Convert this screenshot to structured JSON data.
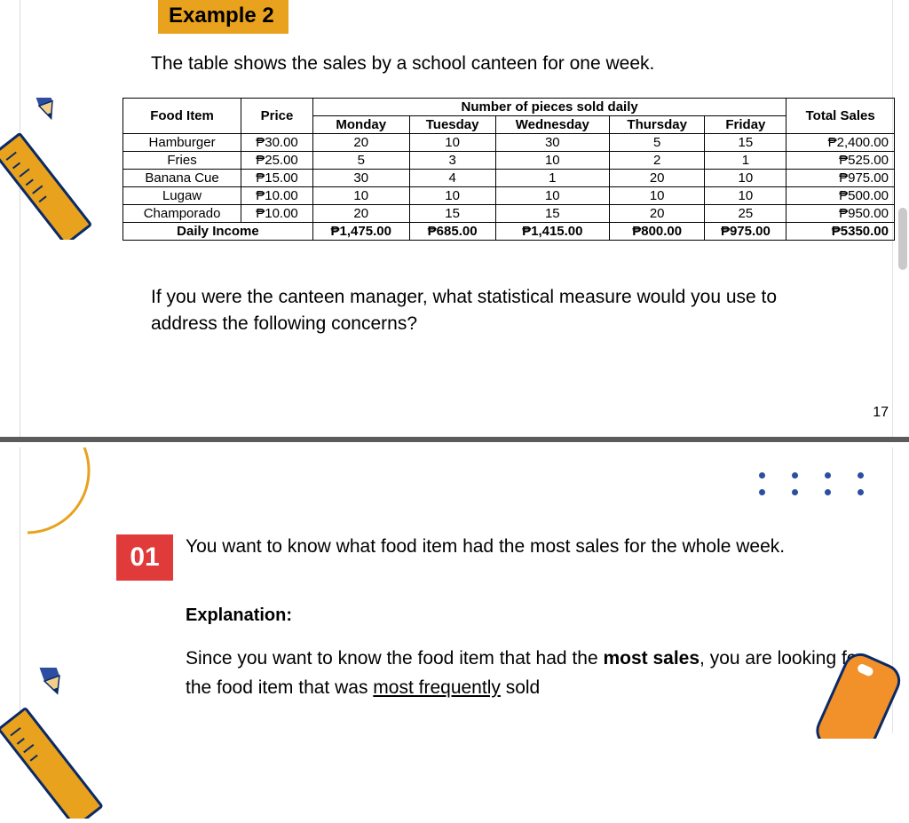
{
  "colors": {
    "badge_bg": "#e8a21d",
    "badge_text": "#000000",
    "divider": "#5b5b5b",
    "num_badge_bg": "#e03a3a",
    "num_badge_text": "#ffffff",
    "dot": "#2d4da0",
    "arc_stroke": "#e8a21d",
    "ruler_fill": "#e8a21d",
    "ruler_stroke": "#0a2a66",
    "pencil_blue": "#2d4da0",
    "pencil_tip": "#f4cf8a",
    "deco_orange": "#f2902a"
  },
  "slide1": {
    "example_label": "Example 2",
    "intro": "The table shows the sales by a school canteen for one week.",
    "question": "If you were the canteen manager, what statistical measure would you use to address the following concerns?",
    "page_number": "17"
  },
  "table": {
    "headers": {
      "food_item": "Food Item",
      "price": "Price",
      "days_group": "Number of pieces sold daily",
      "total_sales": "Total Sales",
      "days": [
        "Monday",
        "Tuesday",
        "Wednesday",
        "Thursday",
        "Friday"
      ]
    },
    "rows": [
      {
        "item": "Hamburger",
        "price": "₱30.00",
        "vals": [
          "20",
          "10",
          "30",
          "5",
          "15"
        ],
        "total": "₱2,400.00"
      },
      {
        "item": "Fries",
        "price": "₱25.00",
        "vals": [
          "5",
          "3",
          "10",
          "2",
          "1"
        ],
        "total": "₱525.00"
      },
      {
        "item": "Banana Cue",
        "price": "₱15.00",
        "vals": [
          "30",
          "4",
          "1",
          "20",
          "10"
        ],
        "total": "₱975.00"
      },
      {
        "item": "Lugaw",
        "price": "₱10.00",
        "vals": [
          "10",
          "10",
          "10",
          "10",
          "10"
        ],
        "total": "₱500.00"
      },
      {
        "item": "Champorado",
        "price": "₱10.00",
        "vals": [
          "20",
          "15",
          "15",
          "20",
          "25"
        ],
        "total": "₱950.00"
      }
    ],
    "daily_income": {
      "label": "Daily Income",
      "vals": [
        "₱1,475.00",
        "₱685.00",
        "₱1,415.00",
        "₱800.00",
        "₱975.00"
      ],
      "total": "₱5350.00"
    }
  },
  "slide2": {
    "number": "01",
    "q": "You want to know what food item had the most sales for the whole week.",
    "explanation_label": "Explanation:",
    "expl_pre": "Since you want to know the food item that had the ",
    "expl_bold": "most sales",
    "expl_mid": ", you are looking for the food item that was ",
    "expl_ul": "most frequently",
    "expl_post": " sold"
  }
}
